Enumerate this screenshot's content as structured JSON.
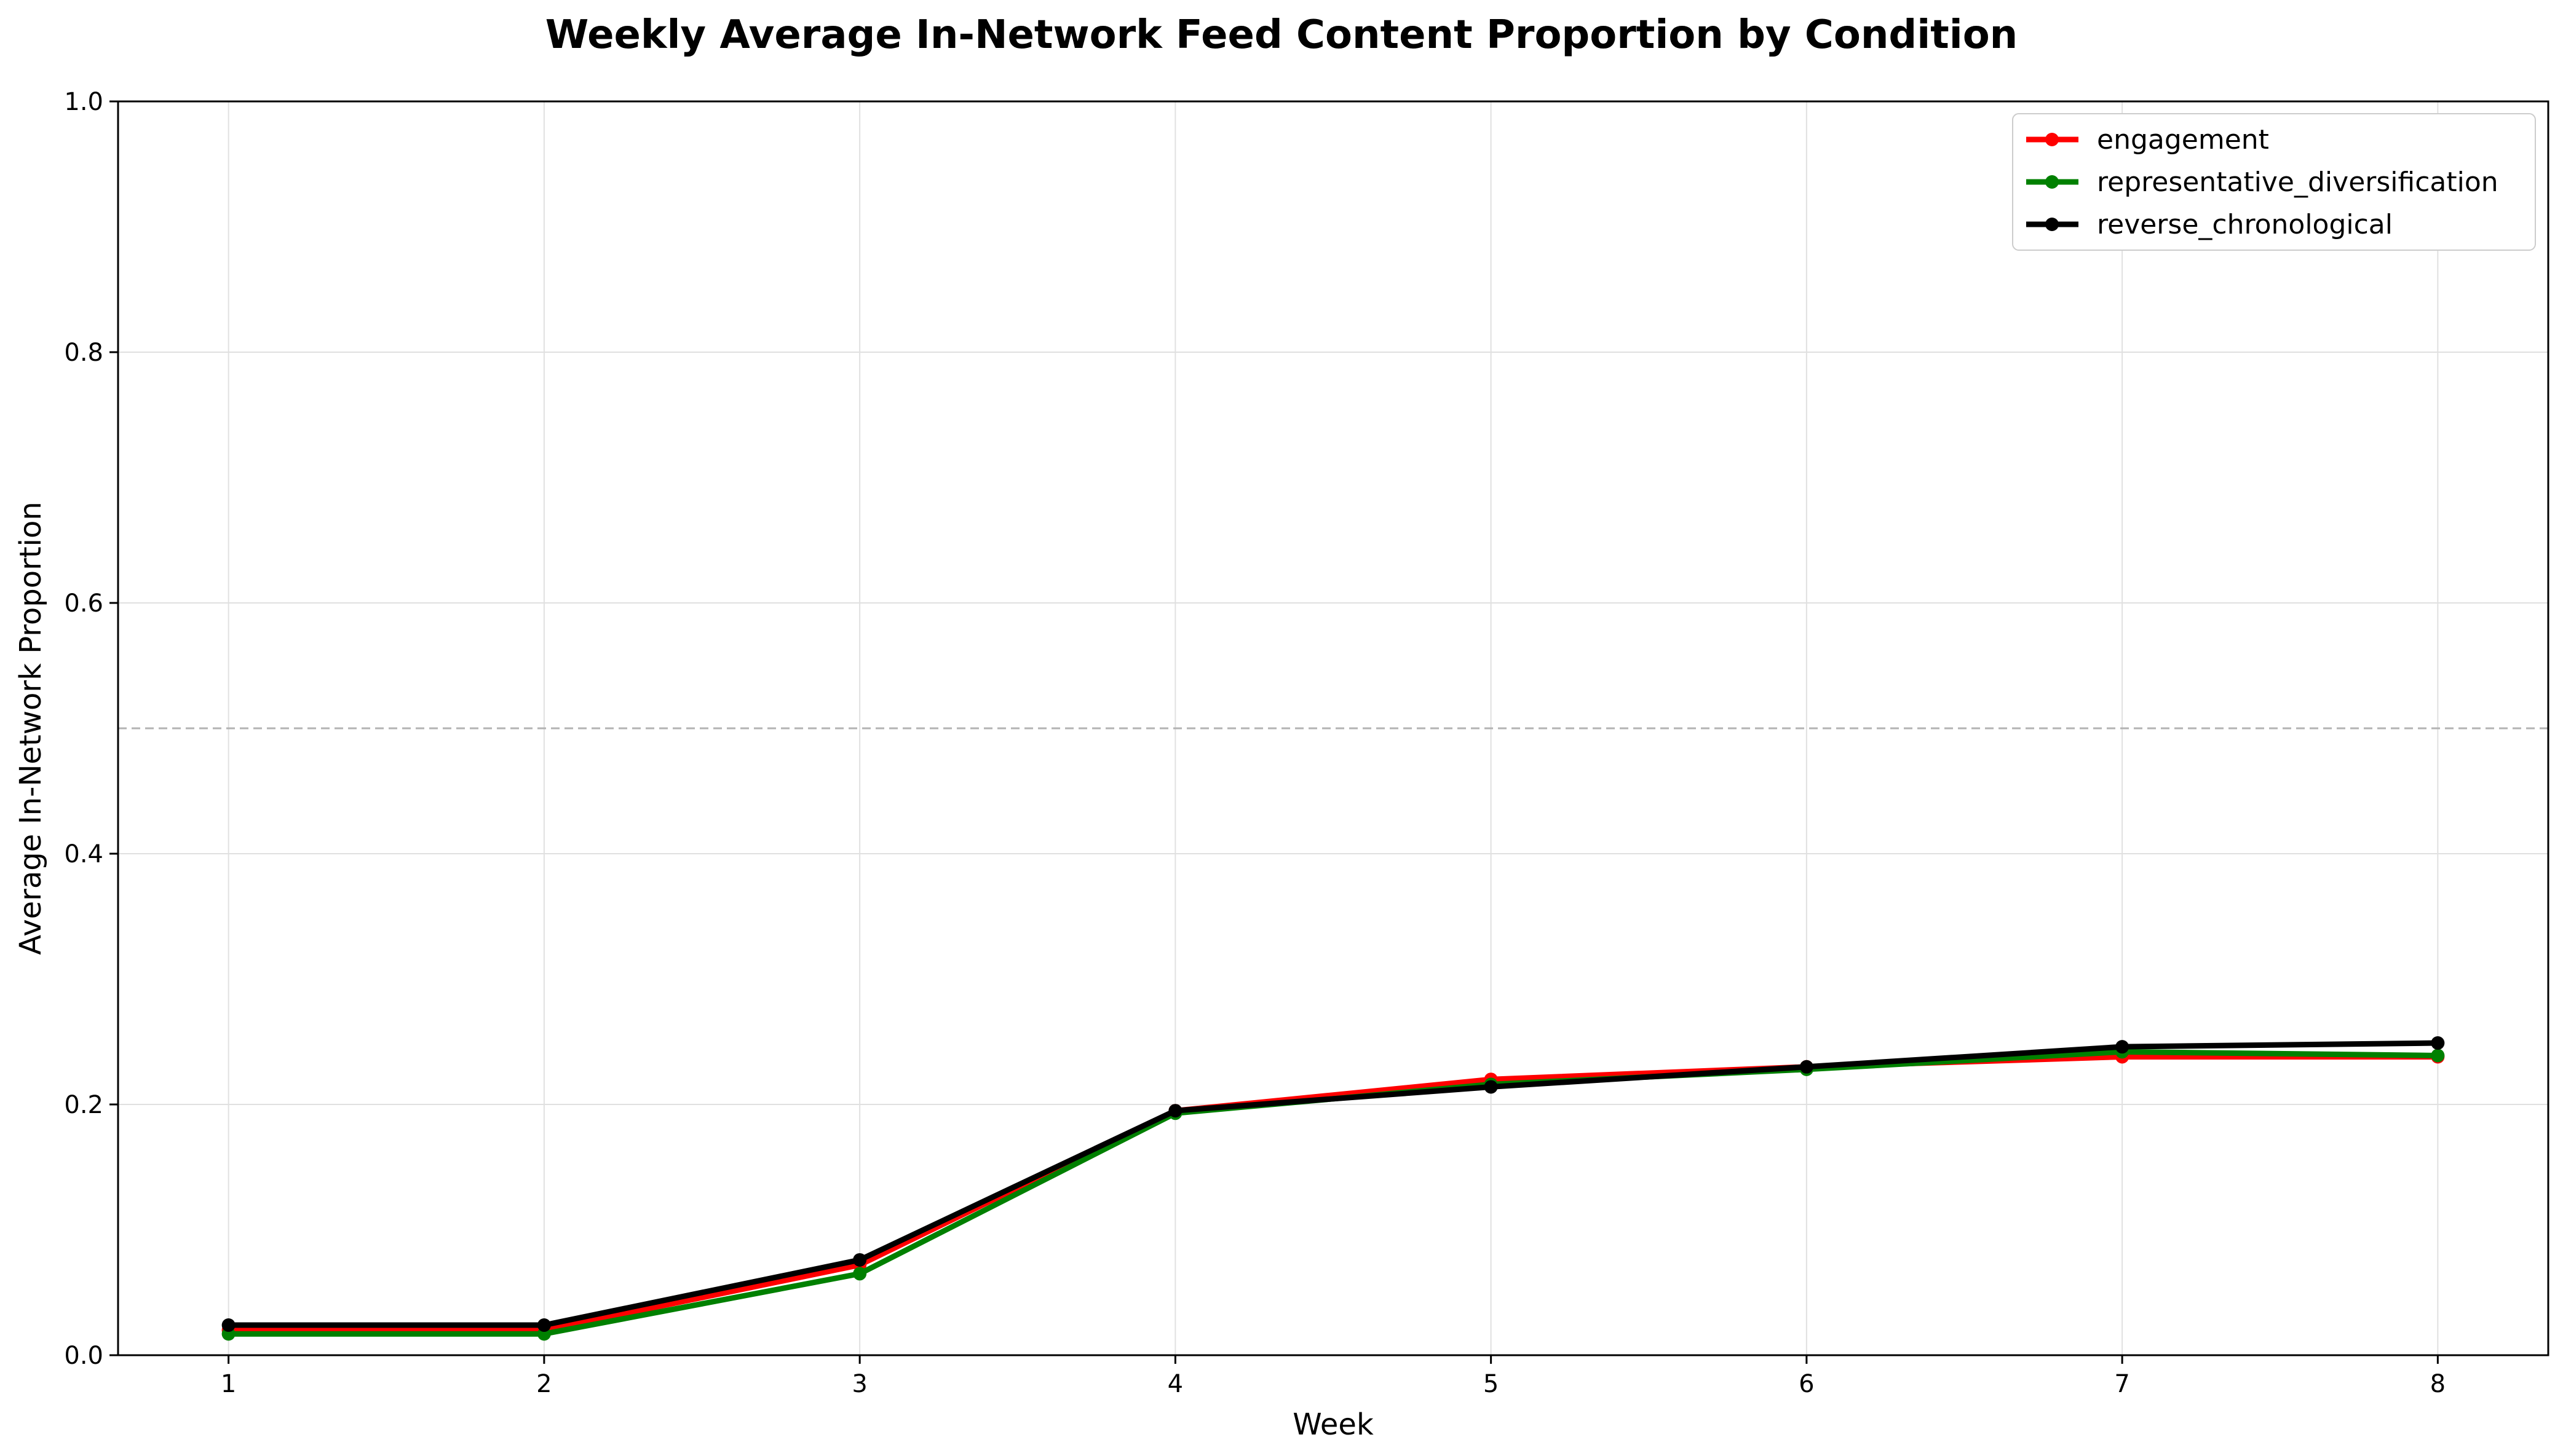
{
  "chart_data": {
    "type": "line",
    "title": "Weekly Average In-Network Feed Content Proportion by Condition",
    "xlabel": "Week",
    "ylabel": "Average In-Network Proportion",
    "x": [
      1,
      2,
      3,
      4,
      5,
      6,
      7,
      8
    ],
    "x_tick_labels": [
      "1",
      "2",
      "3",
      "4",
      "5",
      "6",
      "7",
      "8"
    ],
    "ylim": [
      0.0,
      1.0
    ],
    "y_ticks": [
      0.0,
      0.2,
      0.4,
      0.6,
      0.8,
      1.0
    ],
    "y_tick_labels": [
      "0.0",
      "0.2",
      "0.4",
      "0.6",
      "0.8",
      "1.0"
    ],
    "grid": true,
    "reference_line": {
      "y": 0.5,
      "style": "dashed",
      "color": "#b3b3b3"
    },
    "legend": {
      "placement": "top-right"
    },
    "series": [
      {
        "name": "engagement",
        "color": "#ff0000",
        "values": [
          0.02,
          0.02,
          0.072,
          0.195,
          0.22,
          0.23,
          0.238,
          0.238
        ]
      },
      {
        "name": "representative_diversification",
        "color": "#008000",
        "values": [
          0.017,
          0.017,
          0.065,
          0.193,
          0.216,
          0.228,
          0.242,
          0.239
        ]
      },
      {
        "name": "reverse_chronological",
        "color": "#000000",
        "values": [
          0.024,
          0.024,
          0.076,
          0.195,
          0.214,
          0.23,
          0.246,
          0.249
        ]
      }
    ]
  }
}
